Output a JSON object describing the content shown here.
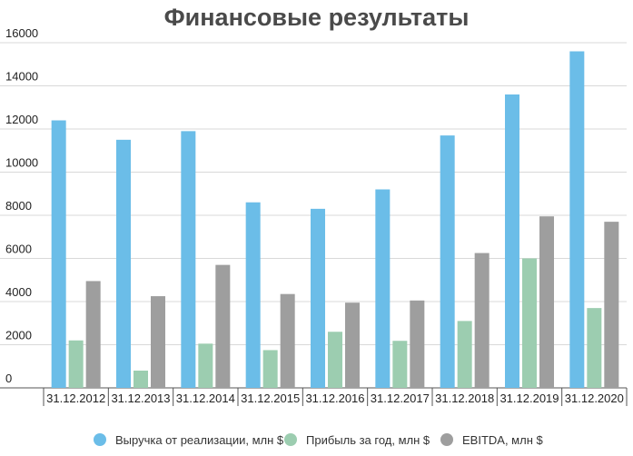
{
  "chart_data": {
    "type": "bar",
    "title": "Финансовые результаты",
    "categories": [
      "31.12.2012",
      "31.12.2013",
      "31.12.2014",
      "31.12.2015",
      "31.12.2016",
      "31.12.2017",
      "31.12.2018",
      "31.12.2019",
      "31.12.2020"
    ],
    "series": [
      {
        "name": "Выручка от реализации, млн $",
        "color": "#6bbde8",
        "values": [
          12400,
          11500,
          11900,
          8600,
          8300,
          9200,
          11700,
          13600,
          15600
        ]
      },
      {
        "name": "Прибыль за год, млн $",
        "color": "#9ccdb0",
        "values": [
          2200,
          800,
          2050,
          1750,
          2600,
          2180,
          3100,
          6000,
          3700
        ]
      },
      {
        "name": "EBITDA, млн $",
        "color": "#9e9e9e",
        "values": [
          4950,
          4250,
          5700,
          4350,
          3950,
          4050,
          6250,
          7950,
          7700
        ]
      }
    ],
    "yticks": [
      0,
      2000,
      4000,
      6000,
      8000,
      10000,
      12000,
      14000,
      16000
    ],
    "ylim": [
      0,
      16000
    ],
    "grid": true,
    "legend_position": "bottom"
  }
}
